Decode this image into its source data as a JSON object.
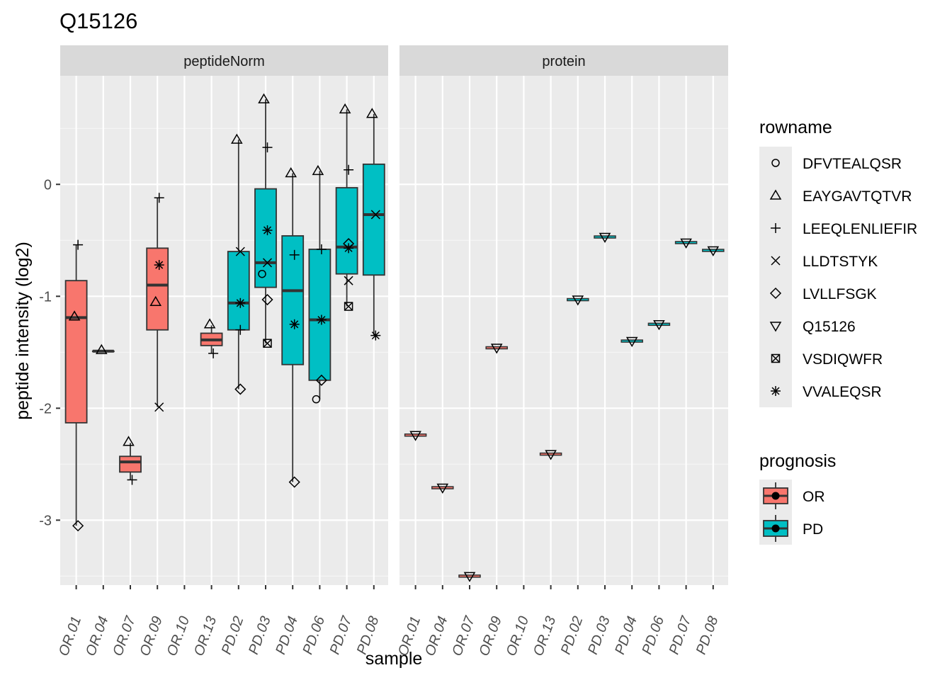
{
  "chart_data": {
    "type": "box",
    "title": "Q15126",
    "xlabel": "sample",
    "ylabel": "peptide intensity (log2)",
    "ylim": [
      -3.58,
      0.97
    ],
    "yticks": [
      0,
      -1,
      -2,
      -3
    ],
    "ytick_labels": [
      "0",
      "-1",
      "-2",
      "-3"
    ],
    "grid": true,
    "categories": [
      "OR.01",
      "OR.04",
      "OR.07",
      "OR.09",
      "OR.10",
      "OR.13",
      "PD.02",
      "PD.03",
      "PD.04",
      "PD.06",
      "PD.07",
      "PD.08"
    ],
    "panels": [
      "peptideNorm",
      "protein"
    ],
    "legend_position": "right",
    "rowname_legend": {
      "title": "rowname",
      "items": [
        {
          "label": "DFVTEALQSR",
          "shape": "circle"
        },
        {
          "label": "EAYGAVTQTVR",
          "shape": "triangle"
        },
        {
          "label": "LEEQLENLIEFIR",
          "shape": "plus"
        },
        {
          "label": "LLDTSTYK",
          "shape": "cross"
        },
        {
          "label": "LVLLFSGK",
          "shape": "diamond"
        },
        {
          "label": "Q15126",
          "shape": "triangle-down"
        },
        {
          "label": "VSDIQWFR",
          "shape": "square-cross"
        },
        {
          "label": "VVALEQSR",
          "shape": "asterisk"
        }
      ]
    },
    "prognosis_legend": {
      "title": "prognosis",
      "items": [
        {
          "label": "OR",
          "color": "#F8766D"
        },
        {
          "label": "PD",
          "color": "#00BFC4"
        }
      ]
    },
    "series": [
      {
        "panel": "peptideNorm",
        "boxes": [
          {
            "sample": "OR.01",
            "prognosis": "OR",
            "lower_whisker": -3.05,
            "q1": -2.13,
            "median": -1.19,
            "q3": -0.86,
            "upper_whisker": -0.54
          },
          {
            "sample": "OR.04",
            "prognosis": "OR",
            "lower_whisker": -1.49,
            "q1": -1.49,
            "median": -1.49,
            "q3": -1.49,
            "upper_whisker": -1.49
          },
          {
            "sample": "OR.07",
            "prognosis": "OR",
            "lower_whisker": -2.64,
            "q1": -2.57,
            "median": -2.48,
            "q3": -2.43,
            "upper_whisker": -2.31
          },
          {
            "sample": "OR.09",
            "prognosis": "OR",
            "lower_whisker": -1.99,
            "q1": -1.3,
            "median": -0.9,
            "q3": -0.57,
            "upper_whisker": -0.12
          },
          {
            "sample": "OR.13",
            "prognosis": "OR",
            "lower_whisker": -1.51,
            "q1": -1.44,
            "median": -1.39,
            "q3": -1.33,
            "upper_whisker": -1.26
          },
          {
            "sample": "PD.02",
            "prognosis": "PD",
            "lower_whisker": -1.83,
            "q1": -1.3,
            "median": -1.06,
            "q3": -0.6,
            "upper_whisker": 0.4
          },
          {
            "sample": "PD.03",
            "prognosis": "PD",
            "lower_whisker": -1.42,
            "q1": -0.92,
            "median": -0.7,
            "q3": -0.04,
            "upper_whisker": 0.76
          },
          {
            "sample": "PD.04",
            "prognosis": "PD",
            "lower_whisker": -2.66,
            "q1": -1.61,
            "median": -0.95,
            "q3": -0.46,
            "upper_whisker": 0.1
          },
          {
            "sample": "PD.06",
            "prognosis": "PD",
            "lower_whisker": -1.92,
            "q1": -1.75,
            "median": -1.21,
            "q3": -0.58,
            "upper_whisker": 0.12
          },
          {
            "sample": "PD.07",
            "prognosis": "PD",
            "lower_whisker": -1.09,
            "q1": -0.8,
            "median": -0.56,
            "q3": -0.03,
            "upper_whisker": 0.67
          },
          {
            "sample": "PD.08",
            "prognosis": "PD",
            "lower_whisker": -1.35,
            "q1": -0.81,
            "median": -0.27,
            "q3": 0.18,
            "upper_whisker": 0.63
          }
        ],
        "points": [
          {
            "sample": "OR.01",
            "peptide": "LVLLFSGK",
            "y": -3.05
          },
          {
            "sample": "OR.01",
            "peptide": "EAYGAVTQTVR",
            "y": -1.18
          },
          {
            "sample": "OR.01",
            "peptide": "LEEQLENLIEFIR",
            "y": -0.54
          },
          {
            "sample": "OR.04",
            "peptide": "EAYGAVTQTVR",
            "y": -1.48
          },
          {
            "sample": "OR.07",
            "peptide": "LEEQLENLIEFIR",
            "y": -2.64
          },
          {
            "sample": "OR.07",
            "peptide": "EAYGAVTQTVR",
            "y": -2.3
          },
          {
            "sample": "OR.09",
            "peptide": "LLDTSTYK",
            "y": -1.99
          },
          {
            "sample": "OR.09",
            "peptide": "EAYGAVTQTVR",
            "y": -1.05
          },
          {
            "sample": "OR.09",
            "peptide": "VVALEQSR",
            "y": -0.72
          },
          {
            "sample": "OR.09",
            "peptide": "LEEQLENLIEFIR",
            "y": -0.12
          },
          {
            "sample": "OR.13",
            "peptide": "LEEQLENLIEFIR",
            "y": -1.51
          },
          {
            "sample": "OR.13",
            "peptide": "EAYGAVTQTVR",
            "y": -1.25
          },
          {
            "sample": "PD.02",
            "peptide": "LVLLFSGK",
            "y": -1.83
          },
          {
            "sample": "PD.02",
            "peptide": "LEEQLENLIEFIR",
            "y": -1.3
          },
          {
            "sample": "PD.02",
            "peptide": "VVALEQSR",
            "y": -1.06
          },
          {
            "sample": "PD.02",
            "peptide": "LLDTSTYK",
            "y": -0.6
          },
          {
            "sample": "PD.02",
            "peptide": "EAYGAVTQTVR",
            "y": 0.4
          },
          {
            "sample": "PD.03",
            "peptide": "VSDIQWFR",
            "y": -1.42
          },
          {
            "sample": "PD.03",
            "peptide": "LVLLFSGK",
            "y": -1.03
          },
          {
            "sample": "PD.03",
            "peptide": "DFVTEALQSR",
            "y": -0.8
          },
          {
            "sample": "PD.03",
            "peptide": "LLDTSTYK",
            "y": -0.7
          },
          {
            "sample": "PD.03",
            "peptide": "VVALEQSR",
            "y": -0.41
          },
          {
            "sample": "PD.03",
            "peptide": "LEEQLENLIEFIR",
            "y": 0.33
          },
          {
            "sample": "PD.03",
            "peptide": "EAYGAVTQTVR",
            "y": 0.76
          },
          {
            "sample": "PD.04",
            "peptide": "LVLLFSGK",
            "y": -2.66
          },
          {
            "sample": "PD.04",
            "peptide": "VVALEQSR",
            "y": -1.25
          },
          {
            "sample": "PD.04",
            "peptide": "LEEQLENLIEFIR",
            "y": -0.63
          },
          {
            "sample": "PD.04",
            "peptide": "EAYGAVTQTVR",
            "y": 0.1
          },
          {
            "sample": "PD.06",
            "peptide": "DFVTEALQSR",
            "y": -1.92
          },
          {
            "sample": "PD.06",
            "peptide": "LVLLFSGK",
            "y": -1.75
          },
          {
            "sample": "PD.06",
            "peptide": "VVALEQSR",
            "y": -1.21
          },
          {
            "sample": "PD.06",
            "peptide": "LEEQLENLIEFIR",
            "y": -0.58
          },
          {
            "sample": "PD.06",
            "peptide": "EAYGAVTQTVR",
            "y": 0.12
          },
          {
            "sample": "PD.07",
            "peptide": "VSDIQWFR",
            "y": -1.09
          },
          {
            "sample": "PD.07",
            "peptide": "LLDTSTYK",
            "y": -0.86
          },
          {
            "sample": "PD.07",
            "peptide": "VVALEQSR",
            "y": -0.57
          },
          {
            "sample": "PD.07",
            "peptide": "LVLLFSGK",
            "y": -0.53
          },
          {
            "sample": "PD.07",
            "peptide": "LEEQLENLIEFIR",
            "y": 0.13
          },
          {
            "sample": "PD.07",
            "peptide": "EAYGAVTQTVR",
            "y": 0.67
          },
          {
            "sample": "PD.08",
            "peptide": "VVALEQSR",
            "y": -1.35
          },
          {
            "sample": "PD.08",
            "peptide": "LLDTSTYK",
            "y": -0.27
          },
          {
            "sample": "PD.08",
            "peptide": "EAYGAVTQTVR",
            "y": 0.63
          }
        ]
      },
      {
        "panel": "protein",
        "points": [
          {
            "sample": "OR.01",
            "prognosis": "OR",
            "peptide": "Q15126",
            "y": -2.24
          },
          {
            "sample": "OR.04",
            "prognosis": "OR",
            "peptide": "Q15126",
            "y": -2.71
          },
          {
            "sample": "OR.07",
            "prognosis": "OR",
            "peptide": "Q15126",
            "y": -3.5
          },
          {
            "sample": "OR.09",
            "prognosis": "OR",
            "peptide": "Q15126",
            "y": -1.46
          },
          {
            "sample": "OR.13",
            "prognosis": "OR",
            "peptide": "Q15126",
            "y": -2.41
          },
          {
            "sample": "PD.02",
            "prognosis": "PD",
            "peptide": "Q15126",
            "y": -1.03
          },
          {
            "sample": "PD.03",
            "prognosis": "PD",
            "peptide": "Q15126",
            "y": -0.47
          },
          {
            "sample": "PD.04",
            "prognosis": "PD",
            "peptide": "Q15126",
            "y": -1.4
          },
          {
            "sample": "PD.06",
            "prognosis": "PD",
            "peptide": "Q15126",
            "y": -1.25
          },
          {
            "sample": "PD.07",
            "prognosis": "PD",
            "peptide": "Q15126",
            "y": -0.52
          },
          {
            "sample": "PD.08",
            "prognosis": "PD",
            "peptide": "Q15126",
            "y": -0.59
          }
        ]
      }
    ]
  }
}
